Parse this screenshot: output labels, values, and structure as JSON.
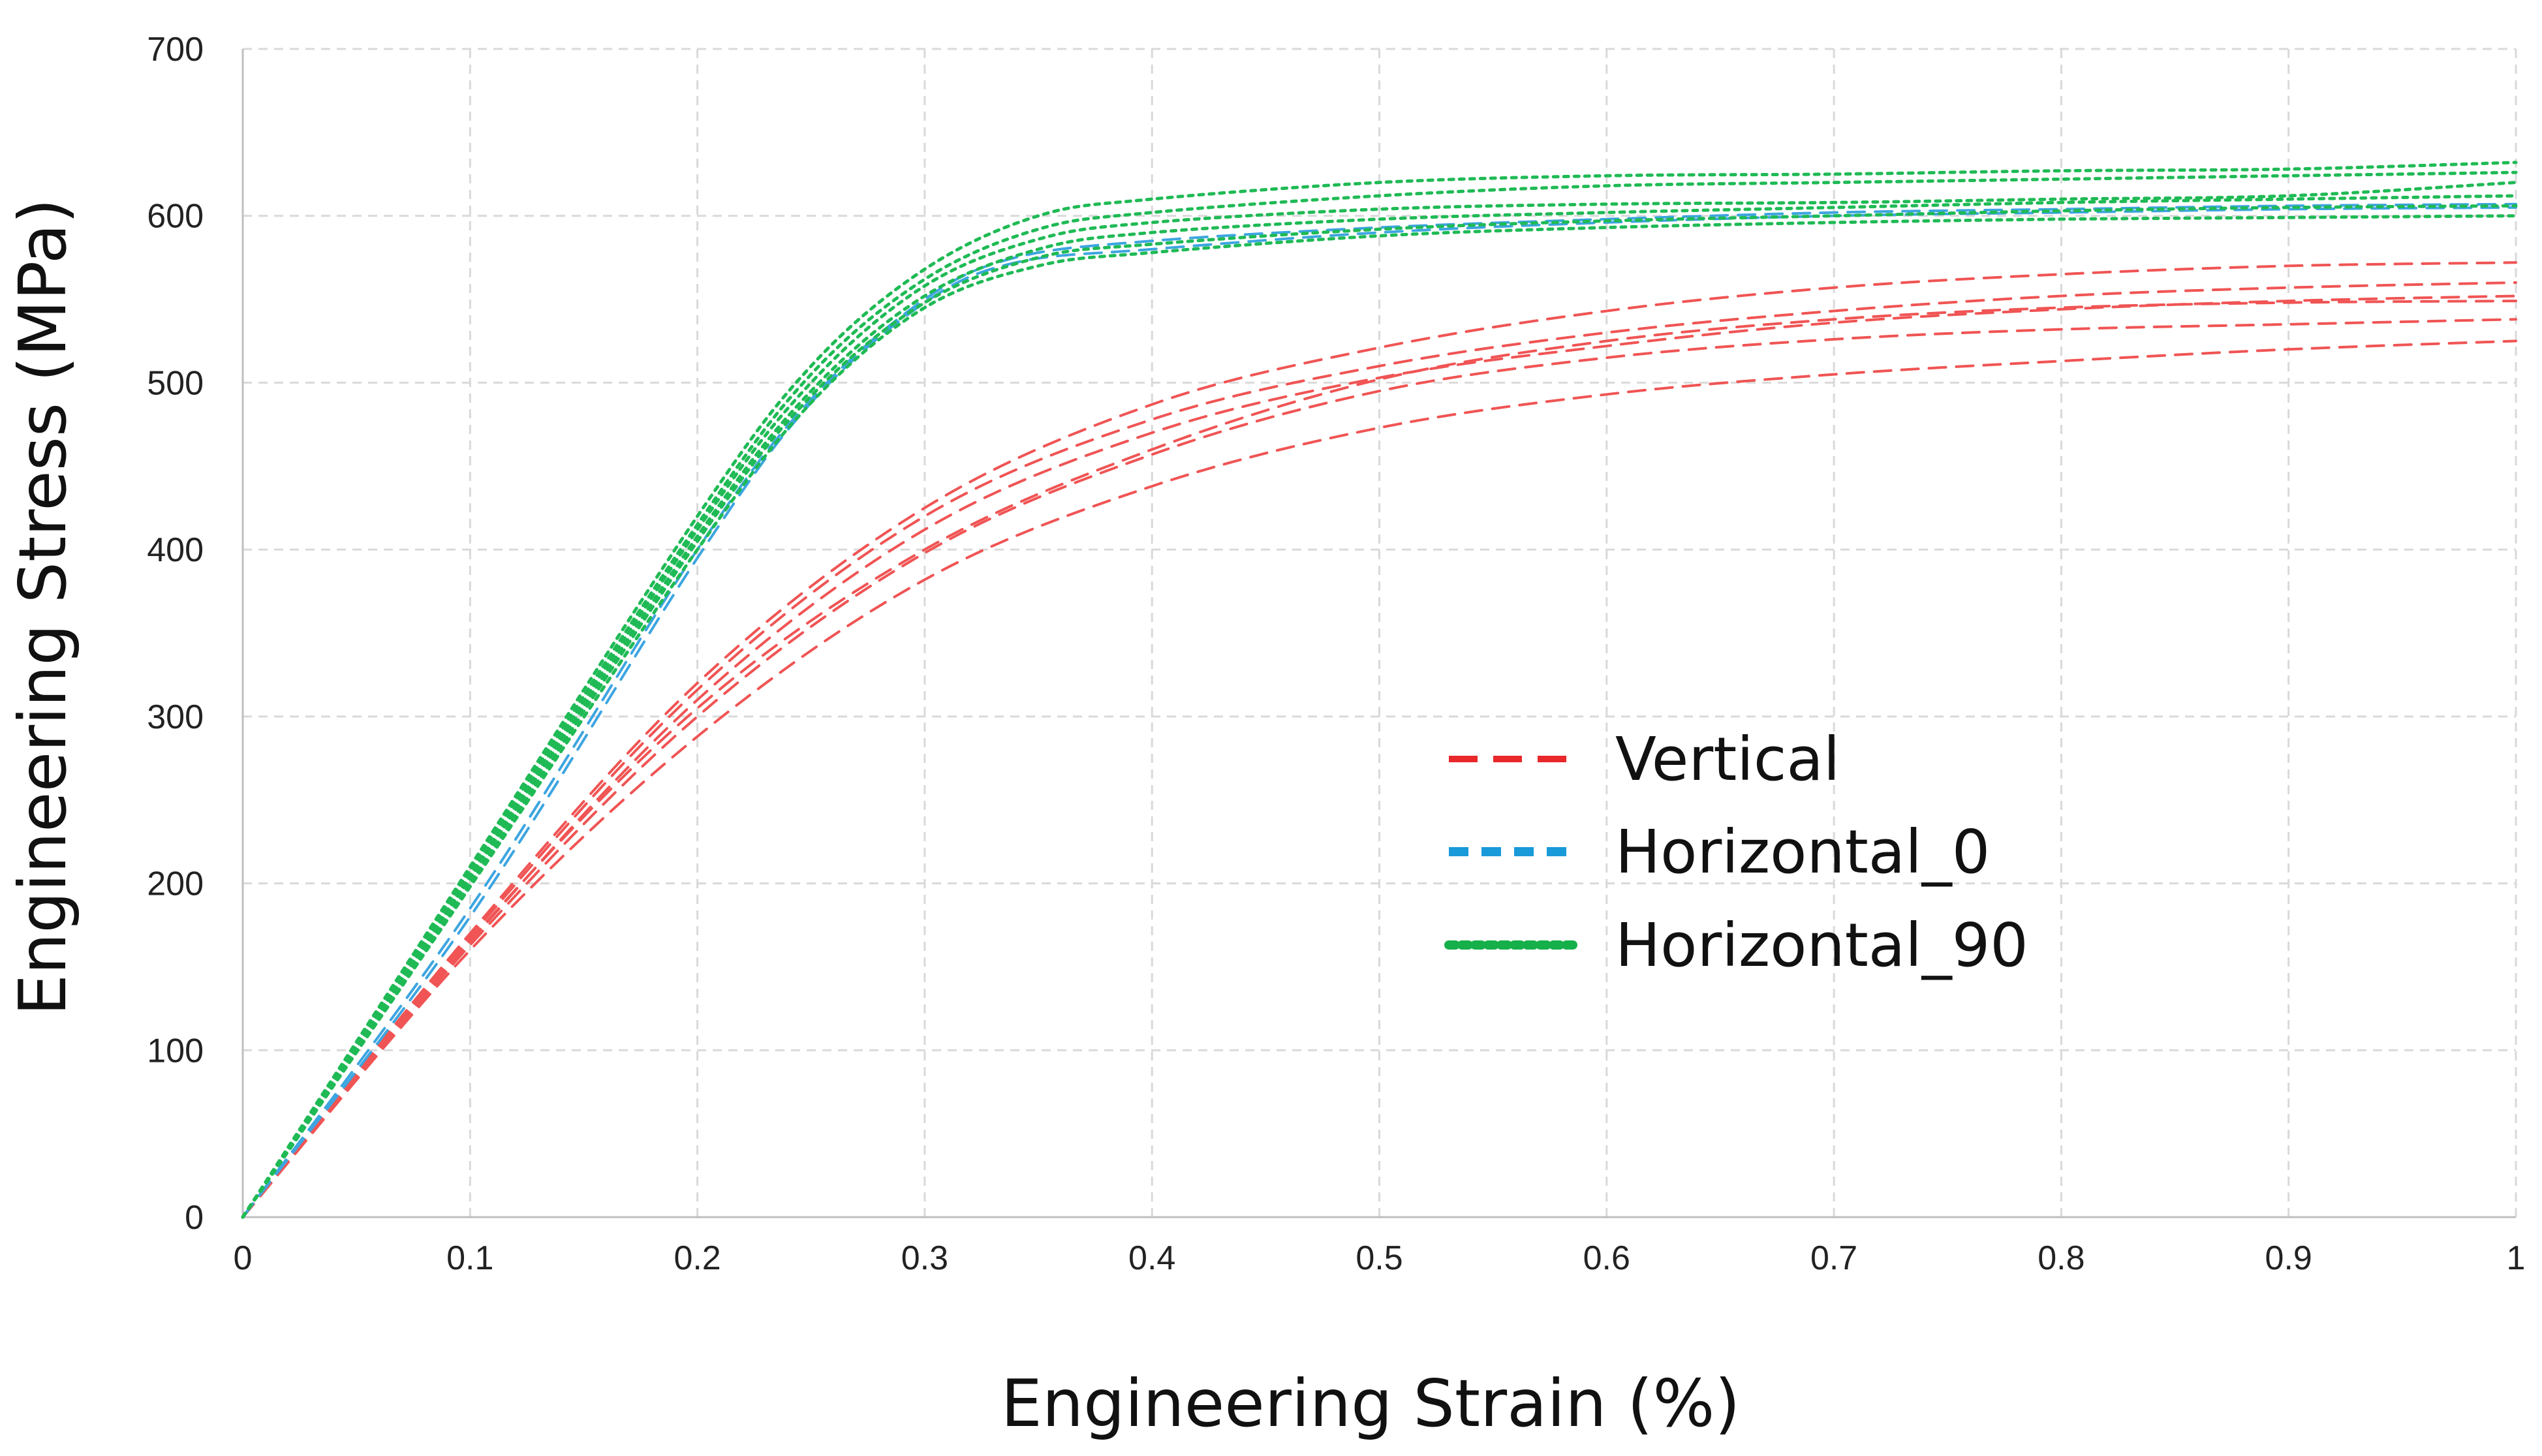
{
  "chart_data": {
    "type": "line",
    "title": "",
    "xlabel": "Engineering Strain (%)",
    "ylabel": "Engineering Stress (MPa)",
    "xlim": [
      0,
      1
    ],
    "ylim": [
      0,
      700
    ],
    "xticks": [
      "0",
      "0.1",
      "0.2",
      "0.3",
      "0.4",
      "0.5",
      "0.6",
      "0.7",
      "0.8",
      "0.9",
      "1"
    ],
    "yticks": [
      "0",
      "100",
      "200",
      "300",
      "400",
      "500",
      "600",
      "700"
    ],
    "grid": true,
    "legend_position": "center-right",
    "legend": [
      {
        "label": "Vertical",
        "color": "#e8282a",
        "dash": "long-dash"
      },
      {
        "label": "Horizontal_0",
        "color": "#1a9ad9",
        "dash": "dash"
      },
      {
        "label": "Horizontal_90",
        "color": "#15b04a",
        "dash": "dot"
      }
    ],
    "series": [
      {
        "name": "Vertical",
        "color": "#f05454",
        "dash": "dashed",
        "x": [
          0,
          0.1,
          0.2,
          0.3,
          0.4,
          0.5,
          0.6,
          0.7,
          0.8,
          0.9,
          1.0
        ],
        "y": [
          0,
          170,
          320,
          425,
          487,
          521,
          543,
          557,
          565,
          570,
          572
        ]
      },
      {
        "name": "Vertical",
        "color": "#f05454",
        "dash": "dashed",
        "x": [
          0,
          0.1,
          0.2,
          0.3,
          0.4,
          0.5,
          0.6,
          0.7,
          0.8,
          0.9,
          1.0
        ],
        "y": [
          0,
          168,
          316,
          420,
          478,
          510,
          530,
          543,
          552,
          557,
          560
        ]
      },
      {
        "name": "Vertical",
        "color": "#f05454",
        "dash": "dashed",
        "x": [
          0,
          0.1,
          0.2,
          0.3,
          0.4,
          0.5,
          0.6,
          0.7,
          0.8,
          0.9,
          1.0
        ],
        "y": [
          0,
          165,
          310,
          412,
          470,
          503,
          522,
          536,
          544,
          549,
          552
        ]
      },
      {
        "name": "Vertical",
        "color": "#f05454",
        "dash": "dashed",
        "x": [
          0,
          0.1,
          0.2,
          0.3,
          0.4,
          0.5,
          0.6,
          0.7,
          0.8,
          0.9,
          1.0
        ],
        "y": [
          0,
          166,
          305,
          400,
          460,
          502,
          525,
          538,
          545,
          548,
          549
        ]
      },
      {
        "name": "Vertical",
        "color": "#f05454",
        "dash": "dashed",
        "x": [
          0,
          0.1,
          0.2,
          0.3,
          0.4,
          0.5,
          0.6,
          0.7,
          0.8,
          0.9,
          1.0
        ],
        "y": [
          0,
          163,
          300,
          398,
          457,
          495,
          515,
          526,
          532,
          535,
          538
        ]
      },
      {
        "name": "Vertical",
        "color": "#f05454",
        "dash": "dashed",
        "x": [
          0,
          0.1,
          0.2,
          0.3,
          0.4,
          0.5,
          0.6,
          0.7,
          0.8,
          0.9,
          1.0
        ],
        "y": [
          0,
          160,
          288,
          382,
          438,
          473,
          493,
          505,
          513,
          520,
          525
        ]
      },
      {
        "name": "Horizontal_0",
        "color": "#3da5e0",
        "dash": "dashed",
        "x": [
          0,
          0.1,
          0.2,
          0.25,
          0.3,
          0.34,
          0.4,
          0.5,
          0.6,
          0.7,
          0.8,
          0.9,
          1.0
        ],
        "y": [
          0,
          185,
          400,
          490,
          550,
          575,
          585,
          593,
          598,
          602,
          604,
          606,
          607
        ]
      },
      {
        "name": "Horizontal_0",
        "color": "#3da5e0",
        "dash": "dashed",
        "x": [
          0,
          0.1,
          0.2,
          0.25,
          0.3,
          0.34,
          0.4,
          0.5,
          0.6,
          0.7,
          0.8,
          0.9,
          1.0
        ],
        "y": [
          0,
          180,
          395,
          488,
          548,
          572,
          580,
          590,
          596,
          600,
          602,
          604,
          605
        ]
      },
      {
        "name": "Horizontal_90",
        "color": "#1fba55",
        "dash": "dotted",
        "x": [
          0,
          0.1,
          0.2,
          0.25,
          0.3,
          0.35,
          0.4,
          0.5,
          0.6,
          0.7,
          0.8,
          0.9,
          1.0
        ],
        "y": [
          0,
          210,
          420,
          510,
          568,
          600,
          610,
          620,
          624,
          625,
          627,
          628,
          632
        ]
      },
      {
        "name": "Horizontal_90",
        "color": "#1fba55",
        "dash": "dotted",
        "x": [
          0,
          0.1,
          0.2,
          0.25,
          0.3,
          0.35,
          0.4,
          0.5,
          0.6,
          0.7,
          0.8,
          0.9,
          1.0
        ],
        "y": [
          0,
          208,
          415,
          505,
          562,
          592,
          602,
          612,
          618,
          620,
          622,
          624,
          626
        ]
      },
      {
        "name": "Horizontal_90",
        "color": "#1fba55",
        "dash": "dotted",
        "x": [
          0,
          0.1,
          0.2,
          0.25,
          0.3,
          0.35,
          0.4,
          0.5,
          0.6,
          0.7,
          0.8,
          0.9,
          1.0
        ],
        "y": [
          0,
          205,
          412,
          500,
          558,
          586,
          596,
          604,
          607,
          608,
          610,
          612,
          620
        ]
      },
      {
        "name": "Horizontal_90",
        "color": "#1fba55",
        "dash": "dotted",
        "x": [
          0,
          0.1,
          0.2,
          0.25,
          0.3,
          0.35,
          0.4,
          0.5,
          0.6,
          0.7,
          0.8,
          0.9,
          1.0
        ],
        "y": [
          0,
          203,
          408,
          495,
          552,
          580,
          590,
          598,
          602,
          605,
          608,
          610,
          612
        ]
      },
      {
        "name": "Horizontal_90",
        "color": "#1fba55",
        "dash": "dotted",
        "x": [
          0,
          0.1,
          0.2,
          0.25,
          0.3,
          0.35,
          0.4,
          0.5,
          0.6,
          0.7,
          0.8,
          0.9,
          1.0
        ],
        "y": [
          0,
          200,
          405,
          492,
          548,
          575,
          583,
          592,
          597,
          600,
          603,
          605,
          606
        ]
      },
      {
        "name": "Horizontal_90",
        "color": "#1fba55",
        "dash": "dotted",
        "x": [
          0,
          0.1,
          0.2,
          0.25,
          0.3,
          0.35,
          0.4,
          0.5,
          0.6,
          0.7,
          0.8,
          0.9,
          1.0
        ],
        "y": [
          0,
          198,
          400,
          488,
          545,
          570,
          578,
          588,
          593,
          596,
          598,
          599,
          600
        ]
      }
    ]
  }
}
